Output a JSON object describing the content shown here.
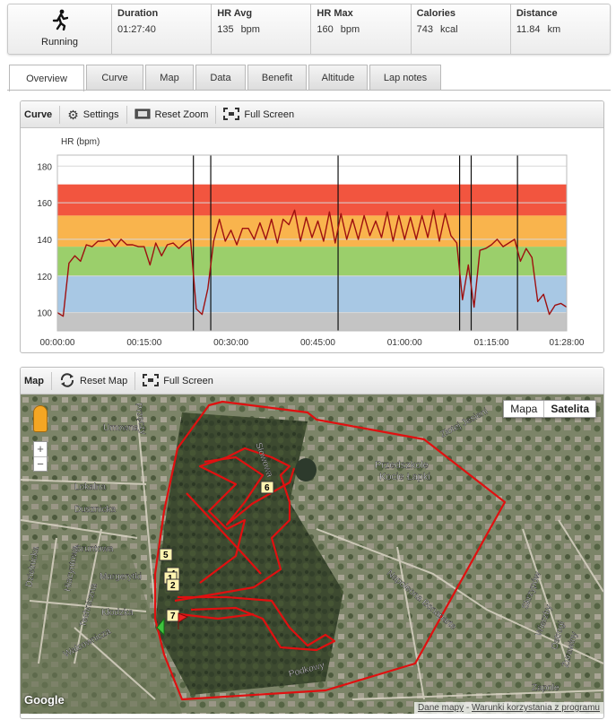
{
  "summary": {
    "sport": {
      "icon": "running-person-icon",
      "label": "Running"
    },
    "metrics": [
      {
        "title": "Duration",
        "value": "01:27:40",
        "unit": ""
      },
      {
        "title": "HR Avg",
        "value": "135",
        "unit": "bpm"
      },
      {
        "title": "HR Max",
        "value": "160",
        "unit": "bpm"
      },
      {
        "title": "Calories",
        "value": "743",
        "unit": "kcal"
      },
      {
        "title": "Distance",
        "value": "11.84",
        "unit": "km"
      }
    ]
  },
  "tabs": [
    "Overview",
    "Curve",
    "Map",
    "Data",
    "Benefit",
    "Altitude",
    "Lap notes"
  ],
  "active_tab": "Overview",
  "curve_panel": {
    "title": "Curve",
    "settings_label": "Settings",
    "reset_zoom_label": "Reset Zoom",
    "full_screen_label": "Full Screen"
  },
  "map_panel": {
    "title": "Map",
    "reset_map_label": "Reset Map",
    "full_screen_label": "Full Screen",
    "maptype_map": "Mapa",
    "maptype_satellite": "Satelita",
    "zoom_in": "+",
    "zoom_out": "−",
    "logo": "Google",
    "attribution_data": "Dane mapy",
    "attribution_sep": " - ",
    "attribution_terms": "Warunki korzystania z programu",
    "street_labels": [
      "Umowna",
      "Lokalna",
      "Dusznicka",
      "Gruntowa",
      "Margerytki",
      "Kłodzka",
      "Walcownicza",
      "Podkowy",
      "Napoleona Bonaparte",
      "Złotej Jesieni",
      "Przedszkole",
      "Kocie Łapki",
      "Skrzypów",
      "Wierzby",
      "Ostrogi",
      "Żurawiny",
      "Zapole",
      "Techniczna",
      "Hiacyntowa",
      "Dzielnicka",
      "Słowowa",
      "Przęczy"
    ],
    "lap_markers": [
      "1",
      "2",
      "4",
      "5",
      "6",
      "7"
    ],
    "colors": {
      "track": "#e01010",
      "water": "#2d3a2c"
    }
  },
  "chart_data": {
    "type": "line",
    "ylabel": "HR (bpm)",
    "xlabel": "",
    "ylim": [
      90,
      186
    ],
    "xlim_min": [
      0,
      88
    ],
    "yticks": [
      100,
      120,
      140,
      160,
      180
    ],
    "xtick_labels": [
      "00:00:00",
      "00:15:00",
      "00:30:00",
      "00:45:00",
      "01:00:00",
      "01:15:00",
      "01:28:00"
    ],
    "xtick_values": [
      0,
      15,
      30,
      45,
      60,
      75,
      88
    ],
    "zones": [
      {
        "from": 90,
        "to": 100,
        "color": "#c4c4c4"
      },
      {
        "from": 100,
        "to": 120,
        "color": "#a8c8e4"
      },
      {
        "from": 120,
        "to": 136,
        "color": "#9bcf6b"
      },
      {
        "from": 136,
        "to": 153,
        "color": "#f9b44d"
      },
      {
        "from": 153,
        "to": 170,
        "color": "#f2553f"
      }
    ],
    "lap_lines_min": [
      23.5,
      26.5,
      48.5,
      69.5,
      71.5,
      79.5
    ],
    "series": [
      {
        "color": "#9e1010",
        "x": [
          0,
          1,
          2,
          3,
          4,
          5,
          6,
          7,
          8,
          9,
          10,
          11,
          12,
          13,
          14,
          15,
          16,
          17,
          18,
          19,
          20,
          21,
          22,
          23,
          24,
          25,
          26,
          27,
          28,
          29,
          30,
          31,
          32,
          33,
          34,
          35,
          36,
          37,
          38,
          39,
          40,
          41,
          42,
          43,
          44,
          45,
          46,
          47,
          48,
          49,
          50,
          51,
          52,
          53,
          54,
          55,
          56,
          57,
          58,
          59,
          60,
          61,
          62,
          63,
          64,
          65,
          66,
          67,
          68,
          69,
          70,
          71,
          72,
          73,
          74,
          75,
          76,
          77,
          78,
          79,
          80,
          81,
          82,
          83,
          84,
          85,
          86,
          87,
          88
        ],
        "y": [
          100,
          98,
          127,
          131,
          128,
          137,
          136,
          139,
          139,
          140,
          136,
          140,
          137,
          137,
          136,
          136,
          126,
          138,
          131,
          137,
          138,
          135,
          138,
          140,
          102,
          99,
          113,
          139,
          151,
          139,
          145,
          137,
          146,
          146,
          140,
          149,
          140,
          151,
          138,
          151,
          148,
          156,
          139,
          152,
          141,
          150,
          139,
          155,
          138,
          154,
          140,
          151,
          140,
          153,
          142,
          150,
          141,
          155,
          139,
          153,
          140,
          152,
          140,
          153,
          141,
          156,
          139,
          154,
          142,
          138,
          107,
          126,
          103,
          134,
          135,
          137,
          140,
          136,
          138,
          140,
          128,
          135,
          130,
          106,
          110,
          99,
          104,
          105,
          103
        ]
      }
    ]
  }
}
